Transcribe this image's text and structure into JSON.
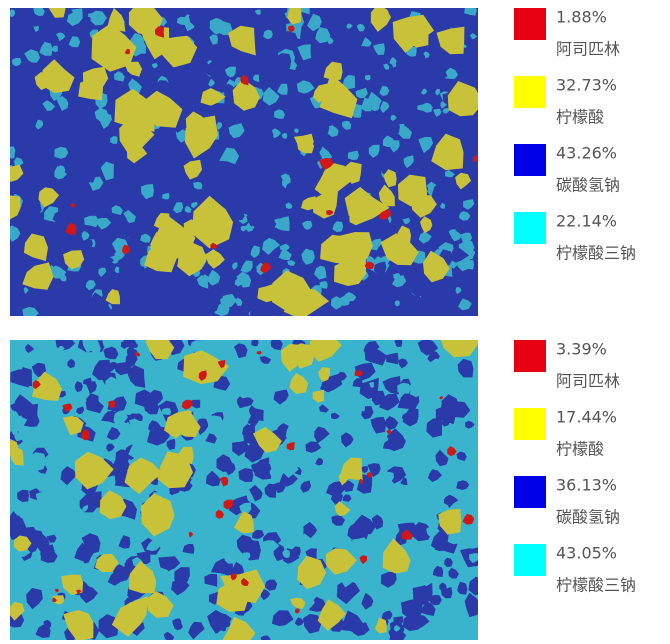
{
  "panels": [
    {
      "legend": [
        {
          "color": "#e60012",
          "value": "1.88%",
          "name": "阿司匹林"
        },
        {
          "color": "#ffff00",
          "value": "32.73%",
          "name": "柠檬酸"
        },
        {
          "color": "#0000e6",
          "value": "43.26%",
          "name": "碳酸氢钠"
        },
        {
          "color": "#00ffff",
          "value": "22.14%",
          "name": "柠檬酸三钠"
        }
      ]
    },
    {
      "legend": [
        {
          "color": "#e60012",
          "value": "3.39%",
          "name": "阿司匹林"
        },
        {
          "color": "#ffff00",
          "value": "17.44%",
          "name": "柠檬酸"
        },
        {
          "color": "#0000e6",
          "value": "36.13%",
          "name": "碳酸氢钠"
        },
        {
          "color": "#00ffff",
          "value": "43.05%",
          "name": "柠檬酸三钠"
        }
      ]
    }
  ]
}
